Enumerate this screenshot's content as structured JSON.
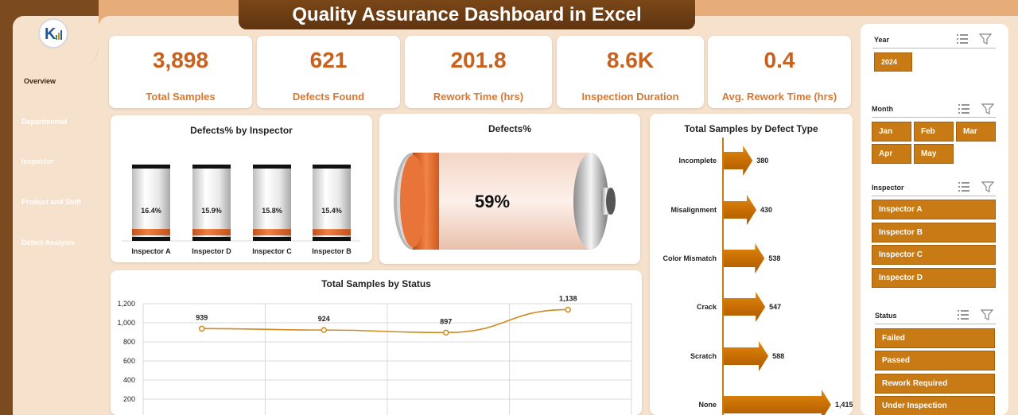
{
  "title": "Quality Assurance Dashboard in Excel",
  "sidebar": {
    "logo_text": "K",
    "items": [
      {
        "label": "Overview",
        "active": true
      },
      {
        "label": "Departmental"
      },
      {
        "label": "Inspector"
      },
      {
        "label": "Product and Shift"
      },
      {
        "label": "Defect Analysis"
      }
    ]
  },
  "kpis": [
    {
      "value": "3,898",
      "label": "Total Samples"
    },
    {
      "value": "621",
      "label": "Defects Found"
    },
    {
      "value": "201.8",
      "label": "Rework Time (hrs)"
    },
    {
      "value": "8.6K",
      "label": "Inspection Duration"
    },
    {
      "value": "0.4",
      "label": "Avg. Rework Time (hrs)"
    }
  ],
  "colors": {
    "accent": "#c87a14",
    "kpi_value": "#c8601e",
    "sidebar": "#7b4a1e"
  },
  "chart_data": [
    {
      "type": "bar",
      "title": "Defects% by Inspector",
      "categories": [
        "Inspector A",
        "Inspector D",
        "Inspector C",
        "Inspector B"
      ],
      "values": [
        16.4,
        15.9,
        15.8,
        15.4
      ],
      "value_labels": [
        "16.4%",
        "15.9%",
        "15.8%",
        "15.4%"
      ],
      "ylim": [
        0,
        100
      ]
    },
    {
      "type": "bar",
      "title": "Defects%",
      "values": [
        59
      ],
      "value_label": "59%",
      "ylim": [
        0,
        100
      ]
    },
    {
      "type": "bar",
      "orientation": "horizontal",
      "title": "Total Samples by Defect Type",
      "categories": [
        "Incomplete",
        "Misalignment",
        "Color Mismatch",
        "Crack",
        "Scratch",
        "None"
      ],
      "values": [
        380,
        430,
        538,
        547,
        588,
        1415
      ],
      "value_labels": [
        "380",
        "430",
        "538",
        "547",
        "588",
        "1,415"
      ]
    },
    {
      "type": "line",
      "title": "Total Samples by Status",
      "values": [
        939,
        924,
        897,
        1138
      ],
      "value_labels": [
        "939",
        "924",
        "897",
        "1,138"
      ],
      "ylim": [
        200,
        1200
      ],
      "yticks": [
        "1,200",
        "1,000",
        "800",
        "600",
        "400",
        "200"
      ],
      "grid": true
    }
  ],
  "slicers": {
    "year": {
      "title": "Year",
      "options": [
        "2024"
      ]
    },
    "month": {
      "title": "Month",
      "options": [
        "Jan",
        "Feb",
        "Mar",
        "Apr",
        "May"
      ]
    },
    "inspector": {
      "title": "Inspector",
      "options": [
        "Inspector A",
        "Inspector B",
        "Inspector C",
        "Inspector D"
      ]
    },
    "status": {
      "title": "Status",
      "options": [
        "Failed",
        "Passed",
        "Rework Required",
        "Under Inspection"
      ]
    }
  }
}
